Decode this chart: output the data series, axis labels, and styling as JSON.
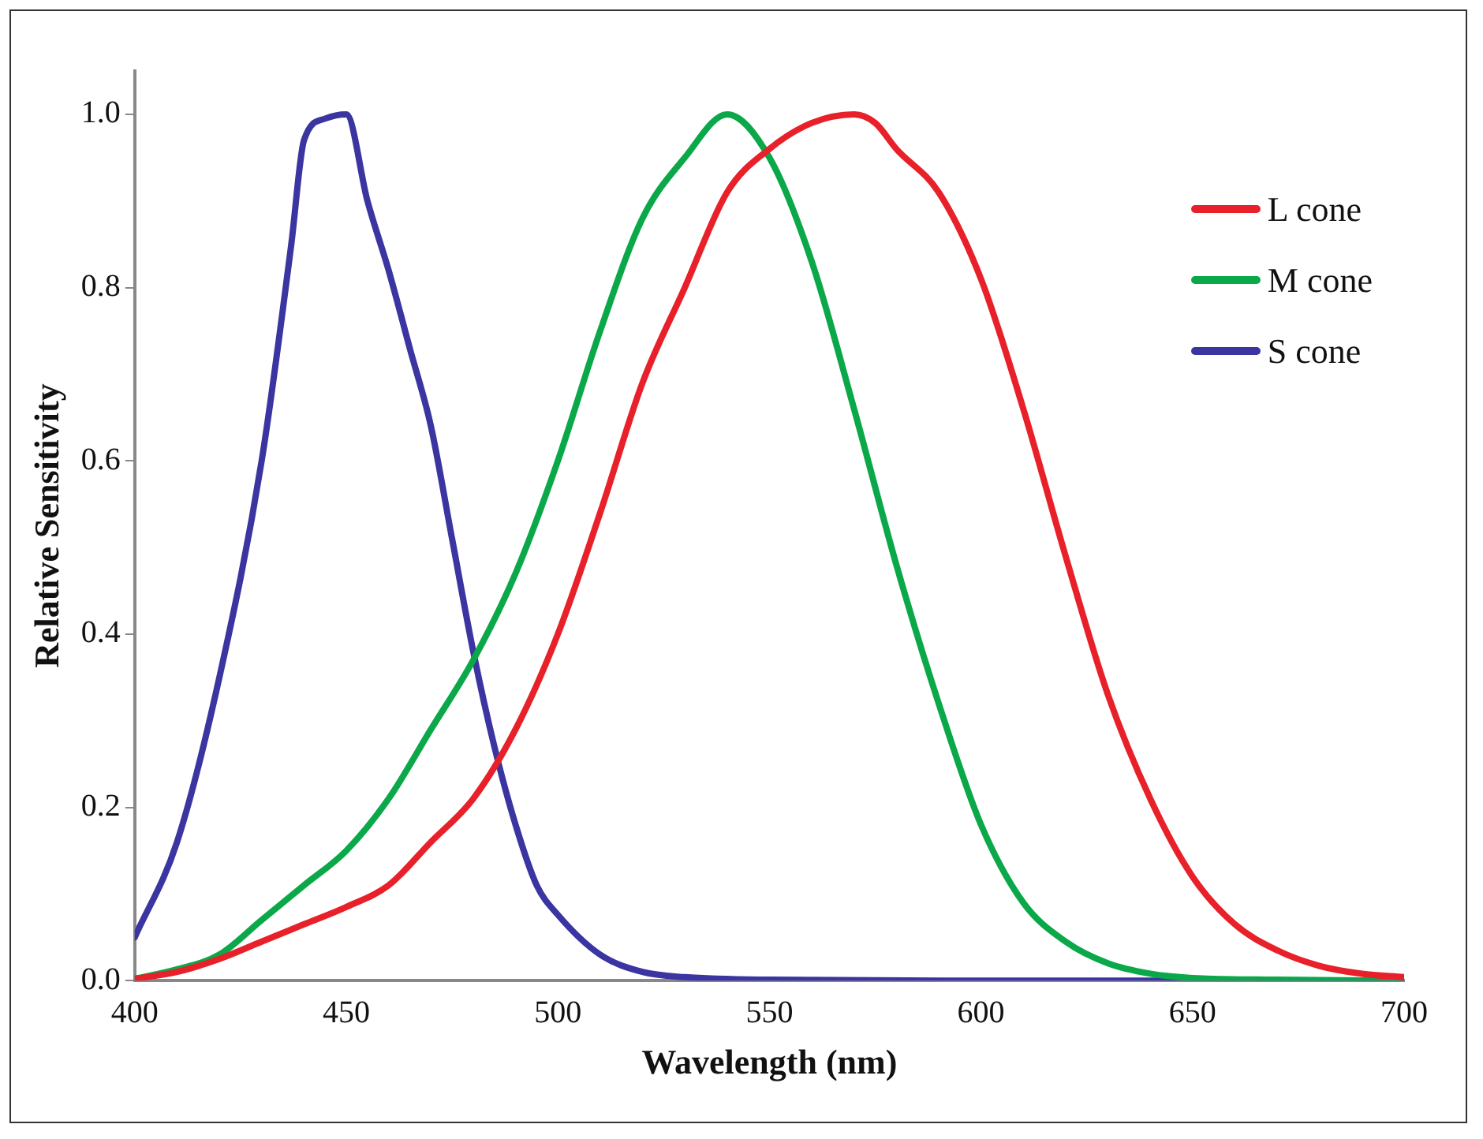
{
  "chart_data": {
    "type": "line",
    "xlabel": "Wavelength (nm)",
    "ylabel": "Relative Sensitivity",
    "xlim": [
      400,
      700
    ],
    "xticks": [
      400,
      450,
      500,
      550,
      600,
      650,
      700
    ],
    "ylim": [
      0,
      1.05
    ],
    "yticks": [
      {
        "value": 0,
        "label": "0.0"
      },
      {
        "value": 0.2,
        "label": "0.2"
      },
      {
        "value": 0.4,
        "label": "0.4"
      },
      {
        "value": 0.6,
        "label": "0.6"
      },
      {
        "value": 0.8,
        "label": "0.8"
      },
      {
        "value": 1,
        "label": "1.0"
      }
    ],
    "grid": false,
    "legend": "top right",
    "marker": "none",
    "line_style": "solid",
    "series": [
      {
        "name": "L cone",
        "color": "#e8202a",
        "x": [
          400,
          410,
          420,
          430,
          440,
          450,
          460,
          470,
          480,
          490,
          500,
          510,
          520,
          530,
          540,
          550,
          560,
          570,
          575,
          580,
          590,
          600,
          610,
          620,
          630,
          640,
          650,
          660,
          670,
          680,
          690,
          700
        ],
        "values": [
          0.002,
          0.01,
          0.025,
          0.045,
          0.065,
          0.085,
          0.11,
          0.16,
          0.21,
          0.29,
          0.4,
          0.54,
          0.69,
          0.8,
          0.91,
          0.96,
          0.99,
          1.0,
          0.99,
          0.96,
          0.91,
          0.81,
          0.66,
          0.49,
          0.33,
          0.21,
          0.12,
          0.065,
          0.035,
          0.017,
          0.008,
          0.004
        ]
      },
      {
        "name": "M cone",
        "color": "#0ba84a",
        "x": [
          400,
          410,
          420,
          430,
          440,
          450,
          460,
          470,
          480,
          490,
          500,
          510,
          520,
          530,
          540,
          550,
          560,
          570,
          580,
          590,
          600,
          610,
          620,
          630,
          640,
          650,
          670,
          700
        ],
        "values": [
          0.002,
          0.013,
          0.03,
          0.07,
          0.11,
          0.15,
          0.21,
          0.29,
          0.37,
          0.47,
          0.6,
          0.75,
          0.88,
          0.95,
          1.0,
          0.95,
          0.83,
          0.66,
          0.48,
          0.32,
          0.18,
          0.09,
          0.045,
          0.02,
          0.008,
          0.003,
          0.001,
          0
        ]
      },
      {
        "name": "S cone",
        "color": "#3a35a0",
        "x": [
          400,
          410,
          420,
          430,
          437,
          440,
          445,
          450,
          455,
          460,
          465,
          470,
          475,
          480,
          485,
          490,
          495,
          500,
          510,
          520,
          530,
          550,
          600,
          650,
          700
        ],
        "values": [
          0.05,
          0.16,
          0.35,
          0.6,
          0.85,
          0.97,
          0.995,
          1.0,
          0.9,
          0.82,
          0.73,
          0.64,
          0.51,
          0.38,
          0.27,
          0.18,
          0.11,
          0.076,
          0.03,
          0.01,
          0.004,
          0.001,
          0,
          0,
          0
        ]
      }
    ]
  }
}
